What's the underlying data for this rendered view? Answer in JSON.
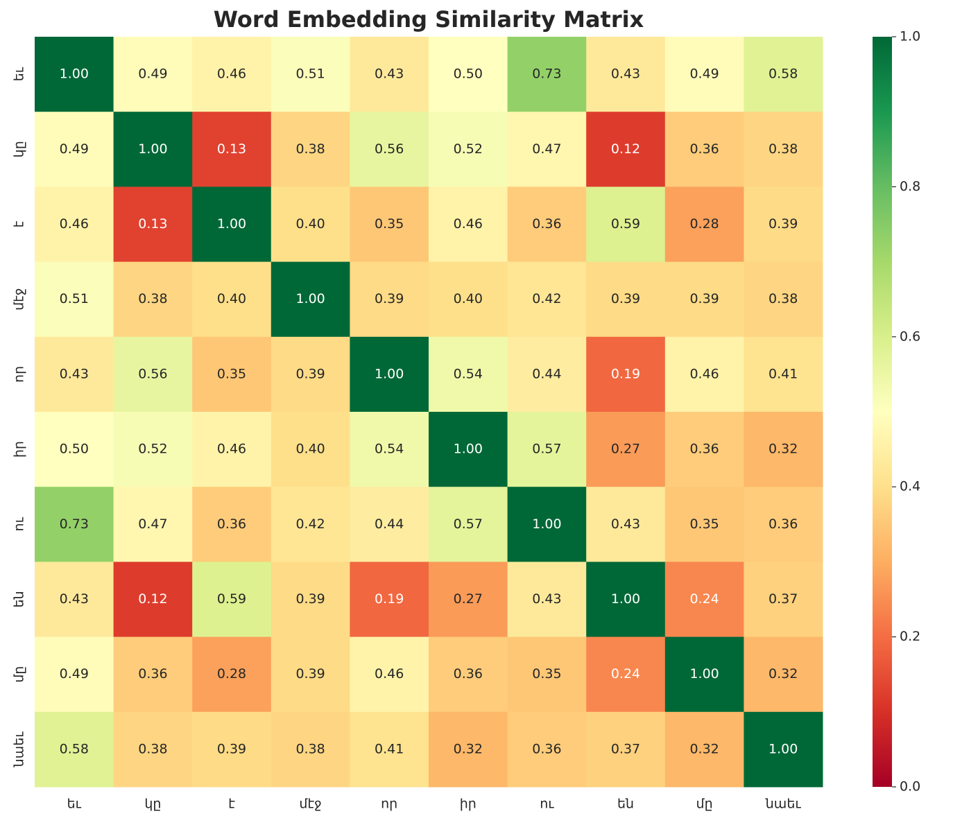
{
  "chart_data": {
    "type": "heatmap",
    "title": "Word Embedding Similarity Matrix",
    "categories": [
      "եւ",
      "կը",
      "է",
      "մէջ",
      "որ",
      "իր",
      "ու",
      "են",
      "մը",
      "նաեւ"
    ],
    "values": [
      [
        1.0,
        0.49,
        0.46,
        0.51,
        0.43,
        0.5,
        0.73,
        0.43,
        0.49,
        0.58
      ],
      [
        0.49,
        1.0,
        0.13,
        0.38,
        0.56,
        0.52,
        0.47,
        0.12,
        0.36,
        0.38
      ],
      [
        0.46,
        0.13,
        1.0,
        0.4,
        0.35,
        0.46,
        0.36,
        0.59,
        0.28,
        0.39
      ],
      [
        0.51,
        0.38,
        0.4,
        1.0,
        0.39,
        0.4,
        0.42,
        0.39,
        0.39,
        0.38
      ],
      [
        0.43,
        0.56,
        0.35,
        0.39,
        1.0,
        0.54,
        0.44,
        0.19,
        0.46,
        0.41
      ],
      [
        0.5,
        0.52,
        0.46,
        0.4,
        0.54,
        1.0,
        0.57,
        0.27,
        0.36,
        0.32
      ],
      [
        0.73,
        0.47,
        0.36,
        0.42,
        0.44,
        0.57,
        1.0,
        0.43,
        0.35,
        0.36
      ],
      [
        0.43,
        0.12,
        0.59,
        0.39,
        0.19,
        0.27,
        0.43,
        1.0,
        0.24,
        0.37
      ],
      [
        0.49,
        0.36,
        0.28,
        0.39,
        0.46,
        0.36,
        0.35,
        0.24,
        1.0,
        0.32
      ],
      [
        0.58,
        0.38,
        0.39,
        0.38,
        0.41,
        0.32,
        0.36,
        0.37,
        0.32,
        1.0
      ]
    ],
    "value_labels": [
      [
        "1.00",
        "0.49",
        "0.46",
        "0.51",
        "0.43",
        "0.50",
        "0.73",
        "0.43",
        "0.49",
        "0.58"
      ],
      [
        "0.49",
        "1.00",
        "0.13",
        "0.38",
        "0.56",
        "0.52",
        "0.47",
        "0.12",
        "0.36",
        "0.38"
      ],
      [
        "0.46",
        "0.13",
        "1.00",
        "0.40",
        "0.35",
        "0.46",
        "0.36",
        "0.59",
        "0.28",
        "0.39"
      ],
      [
        "0.51",
        "0.38",
        "0.40",
        "1.00",
        "0.39",
        "0.40",
        "0.42",
        "0.39",
        "0.39",
        "0.38"
      ],
      [
        "0.43",
        "0.56",
        "0.35",
        "0.39",
        "1.00",
        "0.54",
        "0.44",
        "0.19",
        "0.46",
        "0.41"
      ],
      [
        "0.50",
        "0.52",
        "0.46",
        "0.40",
        "0.54",
        "1.00",
        "0.57",
        "0.27",
        "0.36",
        "0.32"
      ],
      [
        "0.73",
        "0.47",
        "0.36",
        "0.42",
        "0.44",
        "0.57",
        "1.00",
        "0.43",
        "0.35",
        "0.36"
      ],
      [
        "0.43",
        "0.12",
        "0.59",
        "0.39",
        "0.19",
        "0.27",
        "0.43",
        "1.00",
        "0.24",
        "0.37"
      ],
      [
        "0.49",
        "0.36",
        "0.28",
        "0.39",
        "0.46",
        "0.36",
        "0.35",
        "0.24",
        "1.00",
        "0.32"
      ],
      [
        "0.58",
        "0.38",
        "0.39",
        "0.38",
        "0.41",
        "0.32",
        "0.36",
        "0.37",
        "0.32",
        "1.00"
      ]
    ],
    "colormap": "RdYlGn",
    "clim": [
      0,
      1
    ],
    "cticks": [
      {
        "value": 0,
        "label": "0.0"
      },
      0.2,
      0.4,
      0.6,
      0.8,
      {
        "value": 1,
        "label": "1.0"
      }
    ]
  }
}
